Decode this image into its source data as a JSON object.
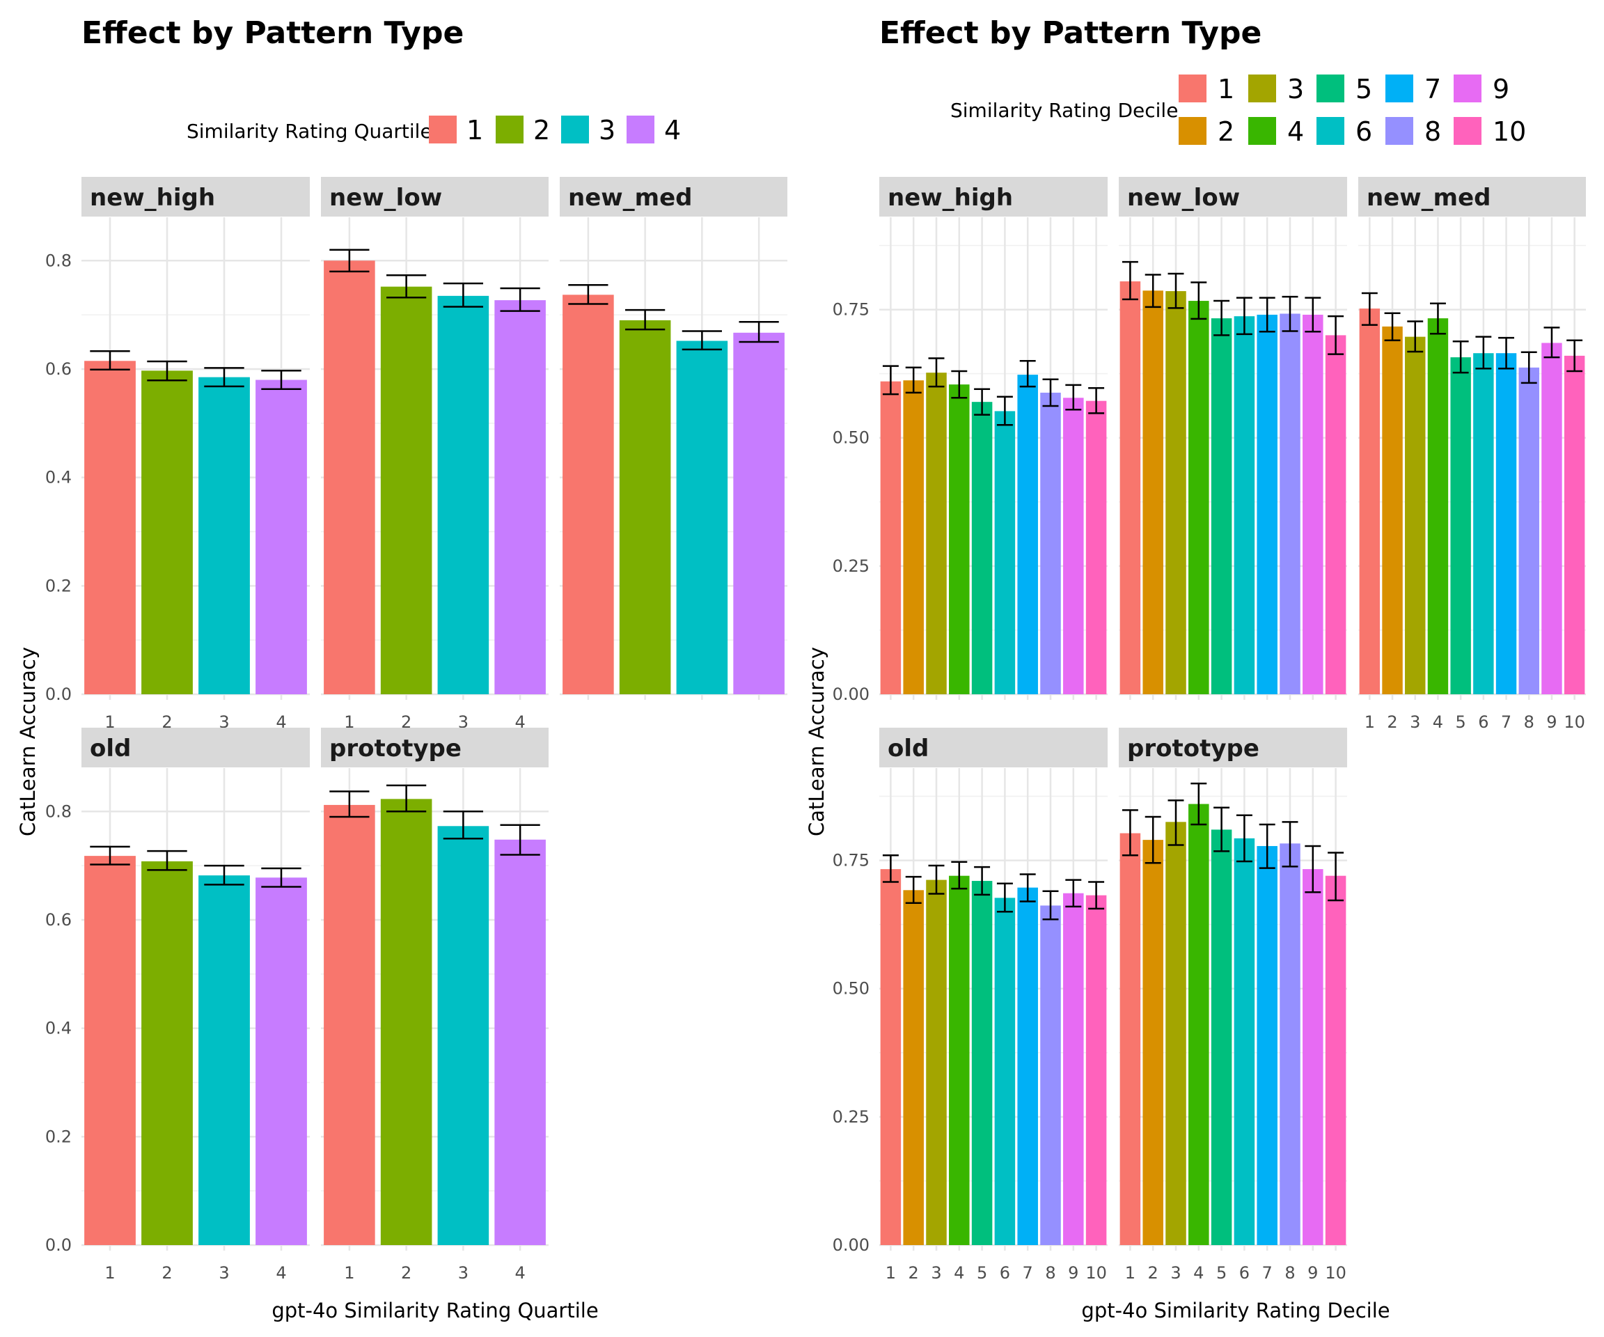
{
  "charts": [
    {
      "title": "Effect by Pattern Type",
      "xlabel": "gpt-4o Similarity Rating Quartile",
      "ylabel": "CatLearn Accuracy",
      "legend_title": "Similarity Rating Quartile"
    },
    {
      "title": "Effect by Pattern Type",
      "xlabel": "gpt-4o Similarity Rating Decile",
      "ylabel": "CatLearn Accuracy",
      "legend_title": "Similarity Rating Decile"
    }
  ],
  "chart_data": [
    {
      "type": "bar",
      "title": "Effect by Pattern Type",
      "xlabel": "gpt-4o Similarity Rating Quartile",
      "ylabel": "CatLearn Accuracy",
      "legend_title": "Similarity Rating Quartile",
      "legend_position": "top",
      "grid": true,
      "error_bars": true,
      "facets_free_y": true,
      "categories": [
        "1",
        "2",
        "3",
        "4"
      ],
      "colors": [
        "#F8766D",
        "#7CAE00",
        "#00BFC4",
        "#C77CFF"
      ],
      "panels": [
        {
          "name": "new_high",
          "ylim": [
            0,
            0.88
          ],
          "yticks": [
            "0.0",
            "0.2",
            "0.4",
            "0.6",
            "0.8"
          ],
          "values": [
            0.615,
            0.597,
            0.585,
            0.58
          ],
          "errors": [
            [
              0.599,
              0.633
            ],
            [
              0.579,
              0.614
            ],
            [
              0.568,
              0.602
            ],
            [
              0.563,
              0.597
            ]
          ]
        },
        {
          "name": "new_low",
          "ylim": [
            0,
            0.88
          ],
          "yticks": [
            "0.0",
            "0.2",
            "0.4",
            "0.6",
            "0.8"
          ],
          "values": [
            0.8,
            0.752,
            0.735,
            0.727
          ],
          "errors": [
            [
              0.78,
              0.82
            ],
            [
              0.732,
              0.773
            ],
            [
              0.715,
              0.758
            ],
            [
              0.707,
              0.749
            ]
          ]
        },
        {
          "name": "new_med",
          "ylim": [
            0,
            0.88
          ],
          "yticks": [
            "0.0",
            "0.2",
            "0.4",
            "0.6",
            "0.8"
          ],
          "values": [
            0.737,
            0.69,
            0.652,
            0.667
          ],
          "errors": [
            [
              0.72,
              0.755
            ],
            [
              0.673,
              0.709
            ],
            [
              0.636,
              0.67
            ],
            [
              0.65,
              0.687
            ]
          ]
        },
        {
          "name": "old",
          "ylim": [
            0,
            0.88
          ],
          "yticks": [
            "0.0",
            "0.2",
            "0.4",
            "0.6",
            "0.8"
          ],
          "values": [
            0.718,
            0.708,
            0.682,
            0.678
          ],
          "errors": [
            [
              0.702,
              0.735
            ],
            [
              0.692,
              0.727
            ],
            [
              0.665,
              0.7
            ],
            [
              0.661,
              0.695
            ]
          ]
        },
        {
          "name": "prototype",
          "ylim": [
            0,
            0.88
          ],
          "yticks": [
            "0.0",
            "0.2",
            "0.4",
            "0.6",
            "0.8"
          ],
          "values": [
            0.812,
            0.823,
            0.773,
            0.748
          ],
          "errors": [
            [
              0.79,
              0.837
            ],
            [
              0.8,
              0.848
            ],
            [
              0.75,
              0.8
            ],
            [
              0.72,
              0.775
            ]
          ]
        }
      ]
    },
    {
      "type": "bar",
      "title": "Effect by Pattern Type",
      "xlabel": "gpt-4o Similarity Rating Decile",
      "ylabel": "CatLearn Accuracy",
      "legend_title": "Similarity Rating Decile",
      "legend_position": "top",
      "grid": true,
      "error_bars": true,
      "facets_free_y": true,
      "categories": [
        "1",
        "2",
        "3",
        "4",
        "5",
        "6",
        "7",
        "8",
        "9",
        "10"
      ],
      "colors": [
        "#F8766D",
        "#D89000",
        "#A3A500",
        "#39B600",
        "#00BF7D",
        "#00BFC4",
        "#00B0F6",
        "#9590FF",
        "#E76BF3",
        "#FF62BC"
      ],
      "panels": [
        {
          "name": "new_high",
          "ylim": [
            0,
            0.93
          ],
          "yticks": [
            "0.00",
            "0.25",
            "0.50",
            "0.75"
          ],
          "values": [
            0.61,
            0.612,
            0.627,
            0.604,
            0.57,
            0.552,
            0.623,
            0.588,
            0.578,
            0.572
          ],
          "errors": [
            [
              0.585,
              0.64
            ],
            [
              0.588,
              0.637
            ],
            [
              0.6,
              0.655
            ],
            [
              0.578,
              0.63
            ],
            [
              0.545,
              0.595
            ],
            [
              0.525,
              0.58
            ],
            [
              0.6,
              0.65
            ],
            [
              0.562,
              0.614
            ],
            [
              0.555,
              0.603
            ],
            [
              0.548,
              0.597
            ]
          ]
        },
        {
          "name": "new_low",
          "ylim": [
            0,
            0.93
          ],
          "yticks": [
            "0.00",
            "0.25",
            "0.50",
            "0.75"
          ],
          "values": [
            0.805,
            0.787,
            0.786,
            0.767,
            0.733,
            0.737,
            0.74,
            0.742,
            0.74,
            0.7
          ],
          "errors": [
            [
              0.77,
              0.843
            ],
            [
              0.755,
              0.818
            ],
            [
              0.753,
              0.82
            ],
            [
              0.732,
              0.803
            ],
            [
              0.7,
              0.767
            ],
            [
              0.702,
              0.773
            ],
            [
              0.707,
              0.773
            ],
            [
              0.708,
              0.775
            ],
            [
              0.707,
              0.773
            ],
            [
              0.663,
              0.737
            ]
          ]
        },
        {
          "name": "new_med",
          "ylim": [
            0,
            0.93
          ],
          "yticks": [
            "0.00",
            "0.25",
            "0.50",
            "0.75"
          ],
          "values": [
            0.752,
            0.717,
            0.697,
            0.733,
            0.657,
            0.665,
            0.665,
            0.637,
            0.685,
            0.66
          ],
          "errors": [
            [
              0.72,
              0.782
            ],
            [
              0.69,
              0.743
            ],
            [
              0.668,
              0.727
            ],
            [
              0.703,
              0.762
            ],
            [
              0.627,
              0.688
            ],
            [
              0.635,
              0.697
            ],
            [
              0.635,
              0.695
            ],
            [
              0.607,
              0.667
            ],
            [
              0.657,
              0.715
            ],
            [
              0.63,
              0.69
            ]
          ]
        },
        {
          "name": "old",
          "ylim": [
            0,
            0.93
          ],
          "yticks": [
            "0.00",
            "0.25",
            "0.50",
            "0.75"
          ],
          "values": [
            0.733,
            0.692,
            0.712,
            0.72,
            0.71,
            0.677,
            0.697,
            0.662,
            0.686,
            0.682
          ],
          "errors": [
            [
              0.708,
              0.76
            ],
            [
              0.667,
              0.718
            ],
            [
              0.685,
              0.74
            ],
            [
              0.695,
              0.747
            ],
            [
              0.683,
              0.737
            ],
            [
              0.65,
              0.705
            ],
            [
              0.67,
              0.723
            ],
            [
              0.635,
              0.69
            ],
            [
              0.66,
              0.712
            ],
            [
              0.656,
              0.708
            ]
          ]
        },
        {
          "name": "prototype",
          "ylim": [
            0,
            0.93
          ],
          "yticks": [
            "0.00",
            "0.25",
            "0.50",
            "0.75"
          ],
          "values": [
            0.803,
            0.79,
            0.825,
            0.86,
            0.81,
            0.793,
            0.778,
            0.783,
            0.733,
            0.72
          ],
          "errors": [
            [
              0.76,
              0.848
            ],
            [
              0.745,
              0.835
            ],
            [
              0.78,
              0.867
            ],
            [
              0.82,
              0.9
            ],
            [
              0.768,
              0.853
            ],
            [
              0.748,
              0.838
            ],
            [
              0.735,
              0.82
            ],
            [
              0.738,
              0.825
            ],
            [
              0.688,
              0.778
            ],
            [
              0.672,
              0.765
            ]
          ]
        }
      ]
    }
  ]
}
